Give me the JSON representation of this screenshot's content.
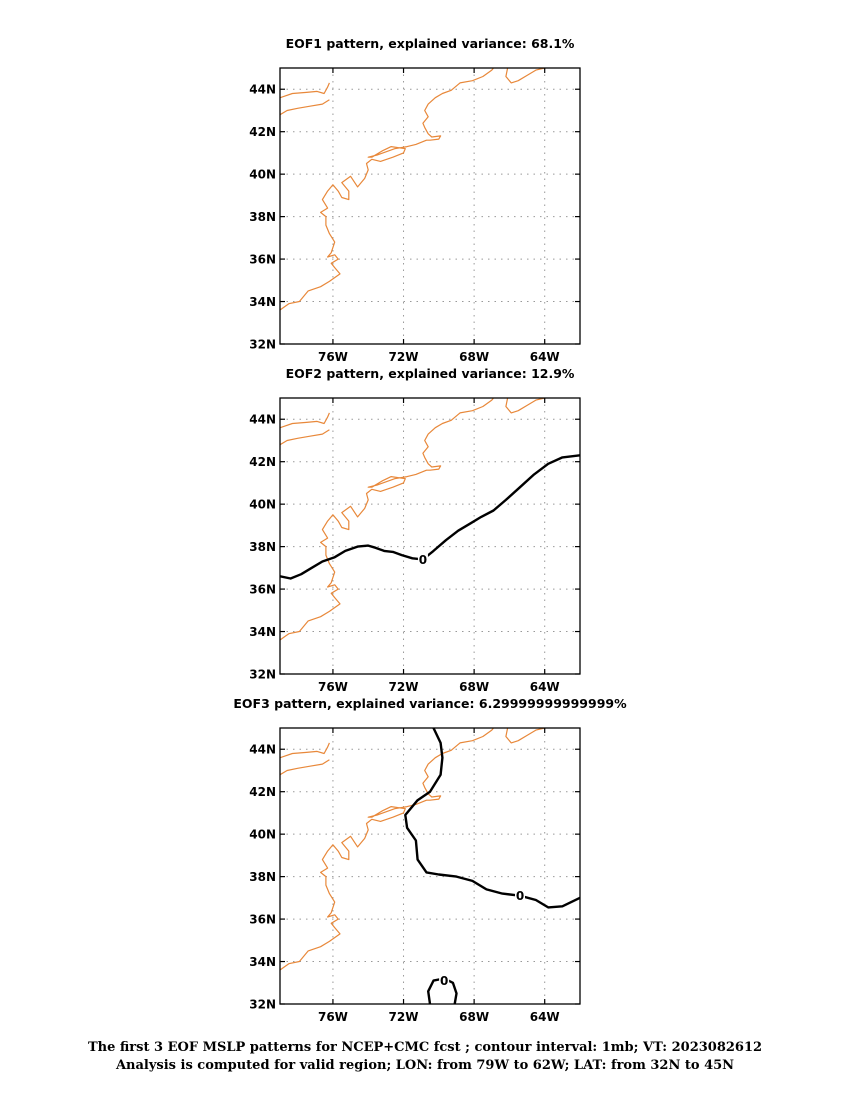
{
  "panels": [
    {
      "title": "EOF1 pattern, explained variance: 68.1%",
      "xticks": [
        {
          "lon": -76,
          "label": "76W"
        },
        {
          "lon": -72,
          "label": "72W"
        },
        {
          "lon": -68,
          "label": "68W"
        },
        {
          "lon": -64,
          "label": "64W"
        }
      ],
      "yticks": [
        {
          "lat": 32,
          "label": "32N"
        },
        {
          "lat": 34,
          "label": "34N"
        },
        {
          "lat": 36,
          "label": "36N"
        },
        {
          "lat": 38,
          "label": "38N"
        },
        {
          "lat": 40,
          "label": "40N"
        },
        {
          "lat": 42,
          "label": "42N"
        },
        {
          "lat": 44,
          "label": "44N"
        }
      ],
      "contours": []
    },
    {
      "title": "EOF2 pattern, explained variance: 12.9%",
      "xticks": [
        {
          "lon": -76,
          "label": "76W"
        },
        {
          "lon": -72,
          "label": "72W"
        },
        {
          "lon": -68,
          "label": "68W"
        },
        {
          "lon": -64,
          "label": "64W"
        }
      ],
      "yticks": [
        {
          "lat": 32,
          "label": "32N"
        },
        {
          "lat": 34,
          "label": "34N"
        },
        {
          "lat": 36,
          "label": "36N"
        },
        {
          "lat": 38,
          "label": "38N"
        },
        {
          "lat": 40,
          "label": "40N"
        },
        {
          "lat": 42,
          "label": "42N"
        },
        {
          "lat": 44,
          "label": "44N"
        }
      ],
      "contours": [
        {
          "value": "0",
          "label_at": [
            -70.9,
            37.4
          ],
          "points": [
            [
              -79,
              36.6
            ],
            [
              -78.4,
              36.5
            ],
            [
              -77.8,
              36.7
            ],
            [
              -77.2,
              37.0
            ],
            [
              -76.6,
              37.3
            ],
            [
              -75.9,
              37.5
            ],
            [
              -75.3,
              37.8
            ],
            [
              -74.6,
              38.0
            ],
            [
              -74.0,
              38.05
            ],
            [
              -73.6,
              37.95
            ],
            [
              -73.1,
              37.8
            ],
            [
              -72.6,
              37.75
            ],
            [
              -72.1,
              37.6
            ],
            [
              -71.5,
              37.45
            ],
            [
              -70.9,
              37.4
            ],
            [
              -70.3,
              37.8
            ],
            [
              -69.6,
              38.3
            ],
            [
              -68.9,
              38.75
            ],
            [
              -68.2,
              39.1
            ],
            [
              -67.6,
              39.4
            ],
            [
              -66.9,
              39.7
            ],
            [
              -66.2,
              40.2
            ],
            [
              -65.4,
              40.8
            ],
            [
              -64.6,
              41.4
            ],
            [
              -63.8,
              41.9
            ],
            [
              -63.0,
              42.2
            ],
            [
              -62,
              42.3
            ]
          ]
        }
      ]
    },
    {
      "title": "EOF3 pattern, explained variance: 6.29999999999999%",
      "xticks": [
        {
          "lon": -76,
          "label": "76W"
        },
        {
          "lon": -72,
          "label": "72W"
        },
        {
          "lon": -68,
          "label": "68W"
        },
        {
          "lon": -64,
          "label": "64W"
        }
      ],
      "yticks": [
        {
          "lat": 32,
          "label": "32N"
        },
        {
          "lat": 34,
          "label": "34N"
        },
        {
          "lat": 36,
          "label": "36N"
        },
        {
          "lat": 38,
          "label": "38N"
        },
        {
          "lat": 40,
          "label": "40N"
        },
        {
          "lat": 42,
          "label": "42N"
        },
        {
          "lat": 44,
          "label": "44N"
        }
      ],
      "contours": [
        {
          "value": "0",
          "label_at": [
            -65.4,
            37.1
          ],
          "points": [
            [
              -70.3,
              45
            ],
            [
              -69.9,
              44.3
            ],
            [
              -69.8,
              43.6
            ],
            [
              -69.9,
              42.8
            ],
            [
              -70.5,
              42.0
            ],
            [
              -71.2,
              41.6
            ],
            [
              -71.9,
              40.9
            ],
            [
              -71.8,
              40.3
            ],
            [
              -71.3,
              39.7
            ],
            [
              -71.2,
              38.8
            ],
            [
              -70.7,
              38.2
            ],
            [
              -70.0,
              38.1
            ],
            [
              -69.0,
              38.0
            ],
            [
              -68.1,
              37.8
            ],
            [
              -67.3,
              37.4
            ],
            [
              -66.4,
              37.2
            ],
            [
              -65.4,
              37.1
            ],
            [
              -64.5,
              36.9
            ],
            [
              -63.8,
              36.55
            ],
            [
              -63.0,
              36.6
            ],
            [
              -62,
              37.0
            ]
          ]
        },
        {
          "value": "0",
          "label_at": [
            -69.7,
            33.1
          ],
          "points": [
            [
              -70.5,
              32
            ],
            [
              -70.6,
              32.6
            ],
            [
              -70.3,
              33.1
            ],
            [
              -69.7,
              33.2
            ],
            [
              -69.2,
              33.0
            ],
            [
              -69.0,
              32.5
            ],
            [
              -69.1,
              32
            ]
          ]
        }
      ]
    }
  ],
  "chart_data": [
    {
      "type": "contour-map",
      "title": "EOF1 pattern, explained variance: 68.1%",
      "xlim": [
        -79,
        -62
      ],
      "ylim": [
        32,
        45
      ],
      "grid": true,
      "contour_levels": []
    },
    {
      "type": "contour-map",
      "title": "EOF2 pattern, explained variance: 12.9%",
      "xlim": [
        -79,
        -62
      ],
      "ylim": [
        32,
        45
      ],
      "grid": true,
      "contour_levels": [
        "0"
      ]
    },
    {
      "type": "contour-map",
      "title": "EOF3 pattern, explained variance: 6.29999999999999%",
      "xlim": [
        -79,
        -62
      ],
      "ylim": [
        32,
        45
      ],
      "grid": true,
      "contour_levels": [
        "0",
        "0"
      ]
    }
  ],
  "coastlines": [
    [
      [
        -79,
        43.6
      ],
      [
        -78.3,
        43.8
      ],
      [
        -77.5,
        43.85
      ],
      [
        -76.9,
        43.9
      ],
      [
        -76.5,
        43.8
      ],
      [
        -76.3,
        44.1
      ],
      [
        -76.2,
        44.3
      ]
    ],
    [
      [
        -79,
        42.8
      ],
      [
        -78.6,
        43.0
      ],
      [
        -78.0,
        43.1
      ],
      [
        -77.3,
        43.2
      ],
      [
        -76.6,
        43.3
      ],
      [
        -76.2,
        43.5
      ]
    ],
    [
      [
        -79,
        33.6
      ],
      [
        -78.5,
        33.9
      ],
      [
        -77.9,
        34.0
      ],
      [
        -77.4,
        34.5
      ],
      [
        -76.7,
        34.7
      ],
      [
        -76.2,
        34.95
      ],
      [
        -75.6,
        35.3
      ],
      [
        -75.9,
        35.6
      ],
      [
        -76.1,
        35.8
      ],
      [
        -75.7,
        36.0
      ],
      [
        -75.9,
        36.2
      ],
      [
        -76.3,
        36.1
      ],
      [
        -76.1,
        36.3
      ],
      [
        -75.9,
        36.8
      ],
      [
        -76.2,
        37.2
      ],
      [
        -76.4,
        37.6
      ],
      [
        -76.4,
        38.0
      ],
      [
        -76.7,
        38.2
      ],
      [
        -76.3,
        38.4
      ],
      [
        -76.6,
        38.8
      ],
      [
        -76.3,
        39.2
      ],
      [
        -76.0,
        39.5
      ],
      [
        -75.7,
        39.2
      ],
      [
        -75.5,
        38.9
      ],
      [
        -75.1,
        38.8
      ],
      [
        -75.1,
        39.2
      ],
      [
        -75.5,
        39.6
      ],
      [
        -75.0,
        39.9
      ],
      [
        -74.6,
        39.4
      ],
      [
        -74.2,
        39.8
      ],
      [
        -74.0,
        40.2
      ],
      [
        -74.1,
        40.5
      ],
      [
        -73.8,
        40.7
      ],
      [
        -73.3,
        40.6
      ],
      [
        -72.6,
        40.8
      ],
      [
        -72.0,
        41.0
      ],
      [
        -71.9,
        41.2
      ],
      [
        -72.7,
        41.3
      ],
      [
        -73.2,
        41.1
      ],
      [
        -73.8,
        40.8
      ],
      [
        -74.0,
        40.8
      ],
      [
        -73.5,
        40.9
      ],
      [
        -72.5,
        41.2
      ],
      [
        -71.8,
        41.3
      ],
      [
        -71.3,
        41.4
      ],
      [
        -71.0,
        41.5
      ],
      [
        -70.7,
        41.6
      ],
      [
        -70.5,
        41.6
      ],
      [
        -70.0,
        41.65
      ],
      [
        -69.9,
        41.8
      ],
      [
        -70.4,
        41.75
      ],
      [
        -70.6,
        41.9
      ],
      [
        -70.8,
        42.2
      ],
      [
        -70.9,
        42.4
      ],
      [
        -70.6,
        42.7
      ],
      [
        -70.8,
        43.0
      ],
      [
        -70.6,
        43.3
      ],
      [
        -70.2,
        43.6
      ],
      [
        -69.8,
        43.8
      ],
      [
        -69.3,
        43.95
      ],
      [
        -68.8,
        44.3
      ],
      [
        -68.1,
        44.4
      ],
      [
        -67.5,
        44.6
      ],
      [
        -67.0,
        44.9
      ],
      [
        -66.9,
        45.0
      ]
    ],
    [
      [
        -66.1,
        45.0
      ],
      [
        -66.2,
        44.6
      ],
      [
        -65.9,
        44.3
      ],
      [
        -65.5,
        44.4
      ],
      [
        -65.0,
        44.65
      ],
      [
        -64.5,
        44.9
      ],
      [
        -64.0,
        45.0
      ]
    ]
  ],
  "caption": {
    "line1": "The first 3 EOF MSLP patterns for NCEP+CMC fcst ; contour interval: 1mb; VT: 2023082612",
    "line2": "Analysis is computed for valid region; LON: from 79W to 62W; LAT: from 32N to 45N"
  },
  "colors": {
    "coastline": "#e8883a",
    "contour": "#000000",
    "grid": "#999999",
    "frame": "#000000"
  }
}
